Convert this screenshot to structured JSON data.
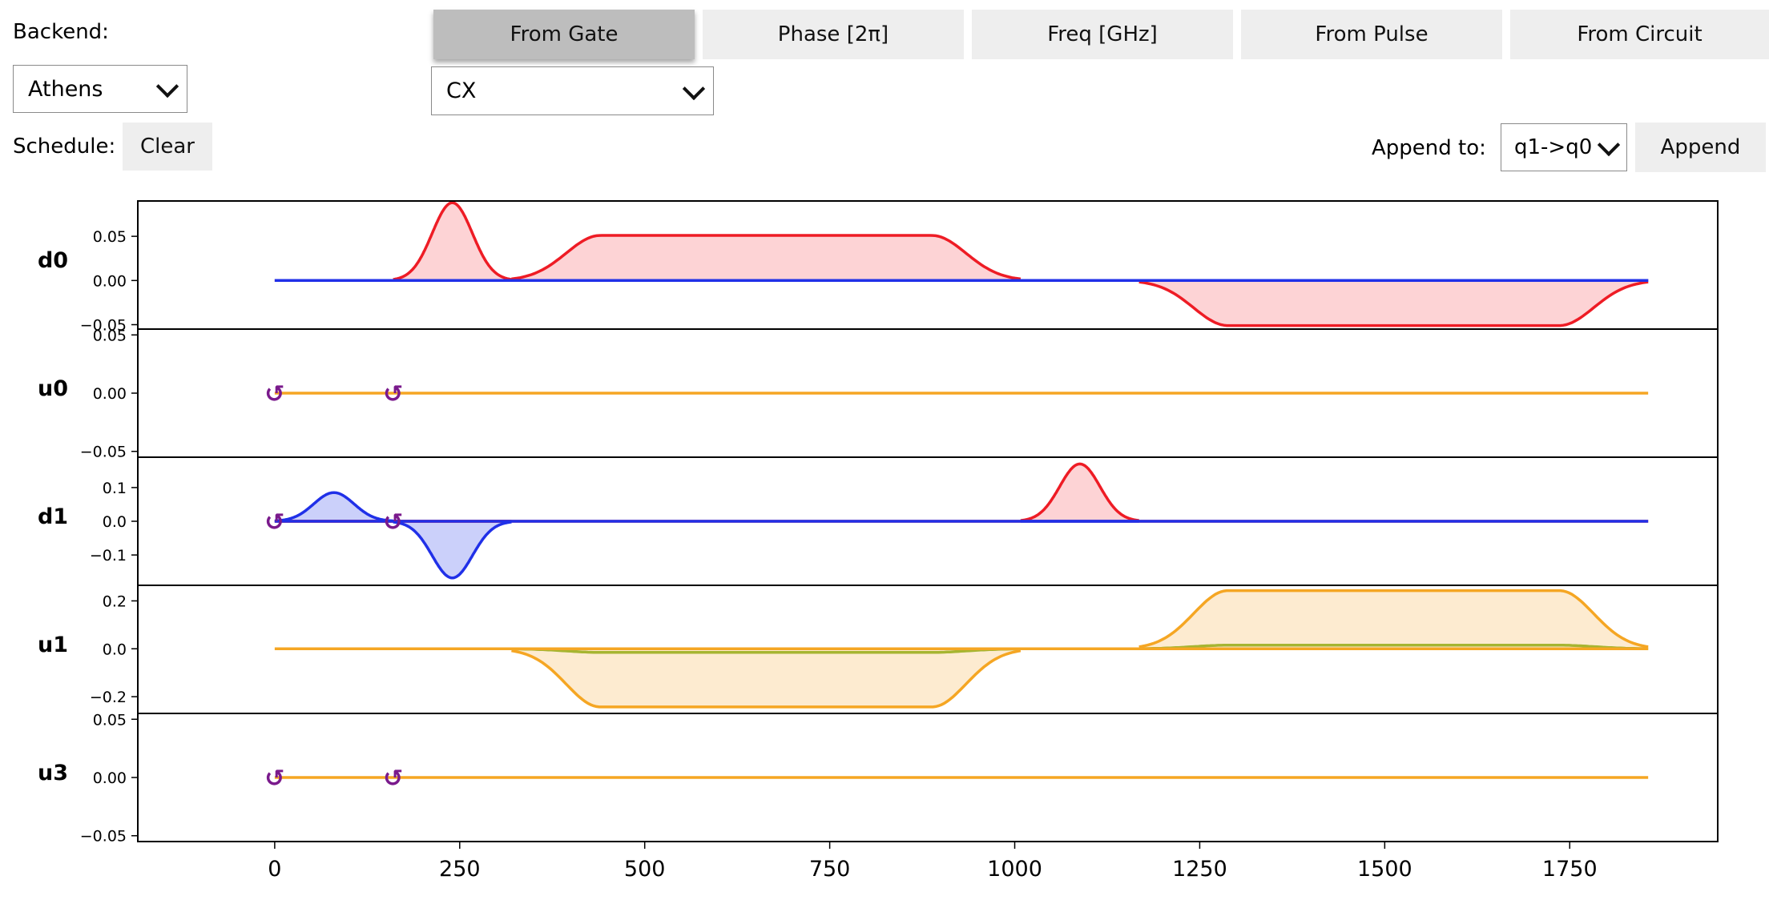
{
  "controls": {
    "backend_label": "Backend:",
    "backend_value": "Athens",
    "tabs": [
      "From Gate",
      "Phase [2π]",
      "Freq [GHz]",
      "From Pulse",
      "From Circuit"
    ],
    "active_tab": "From Gate",
    "gate_value": "CX",
    "schedule_label": "Schedule:",
    "clear_label": "Clear",
    "append_to_label": "Append to:",
    "append_to_value": "q1->q0",
    "append_label": "Append"
  },
  "colors": {
    "real": "#ee1c25",
    "real_fill": "#fdd3d5",
    "imag": "#2030e8",
    "imag_fill": "#cbd0fa",
    "control": "#f5a623",
    "control_fill": "#fdebd0",
    "control_imag": "#a6b531",
    "frame_change": "#7a1a8c"
  },
  "chart_data": {
    "type": "line",
    "xlabel": "",
    "xlim": [
      -185,
      1950
    ],
    "xticks": [
      0,
      250,
      500,
      750,
      1000,
      1250,
      1500,
      1750
    ],
    "xtick_labels": [
      "0",
      "250",
      "500",
      "750",
      "1000",
      "1250",
      "1500",
      "1750"
    ],
    "frame_change_symbol": "↺",
    "channels": [
      {
        "name": "d0",
        "ylim": [
          -0.055,
          0.09
        ],
        "yticks": [
          0.05,
          0.0,
          -0.05
        ],
        "ytick_labels": [
          "0.05",
          "0.00",
          "−0.05"
        ],
        "baseline": [
          0,
          1856
        ],
        "frame_changes": [],
        "pulses": [
          {
            "shape": "gaussian",
            "t0": 160,
            "t1": 320,
            "real": 0.088,
            "imag": 0.0
          },
          {
            "shape": "gaussian_square",
            "t0": 320,
            "t1": 1008,
            "rise": 120,
            "real": 0.051,
            "imag": 0.0
          },
          {
            "shape": "gaussian_square",
            "t0": 1168,
            "t1": 1856,
            "rise": 120,
            "real": -0.051,
            "imag": 0.0
          }
        ]
      },
      {
        "name": "u0",
        "ylim": [
          -0.055,
          0.055
        ],
        "yticks": [
          0.05,
          0.0,
          -0.05
        ],
        "ytick_labels": [
          "0.05",
          "0.00",
          "−0.05"
        ],
        "baseline": [
          0,
          1856
        ],
        "frame_changes": [
          0,
          160
        ],
        "pulses": []
      },
      {
        "name": "d1",
        "ylim": [
          -0.19,
          0.19
        ],
        "yticks": [
          0.1,
          0.0,
          -0.1
        ],
        "ytick_labels": [
          "0.1",
          "0.0",
          "−0.1"
        ],
        "baseline": [
          0,
          1856
        ],
        "frame_changes": [
          0,
          160
        ],
        "pulses": [
          {
            "shape": "gaussian",
            "t0": 0,
            "t1": 160,
            "real": 0.0,
            "imag": 0.085
          },
          {
            "shape": "gaussian",
            "t0": 160,
            "t1": 320,
            "real": 0.0,
            "imag": -0.168
          },
          {
            "shape": "gaussian",
            "t0": 1008,
            "t1": 1168,
            "real": 0.17,
            "imag": 0.0
          }
        ]
      },
      {
        "name": "u1",
        "ylim": [
          -0.27,
          0.265
        ],
        "yticks": [
          0.2,
          0.0,
          -0.2
        ],
        "ytick_labels": [
          "0.2",
          "0.0",
          "−0.2"
        ],
        "baseline": [
          0,
          1856
        ],
        "frame_changes": [],
        "pulses": [
          {
            "shape": "gaussian_square",
            "t0": 320,
            "t1": 1008,
            "rise": 120,
            "real": -0.243,
            "imag": -0.015
          },
          {
            "shape": "gaussian_square",
            "t0": 1168,
            "t1": 1856,
            "rise": 120,
            "real": 0.243,
            "imag": 0.015
          }
        ]
      },
      {
        "name": "u3",
        "ylim": [
          -0.055,
          0.055
        ],
        "yticks": [
          0.05,
          0.0,
          -0.05
        ],
        "ytick_labels": [
          "0.05",
          "0.00",
          "−0.05"
        ],
        "baseline": [
          0,
          1856
        ],
        "frame_changes": [
          0,
          160
        ],
        "pulses": []
      }
    ]
  }
}
